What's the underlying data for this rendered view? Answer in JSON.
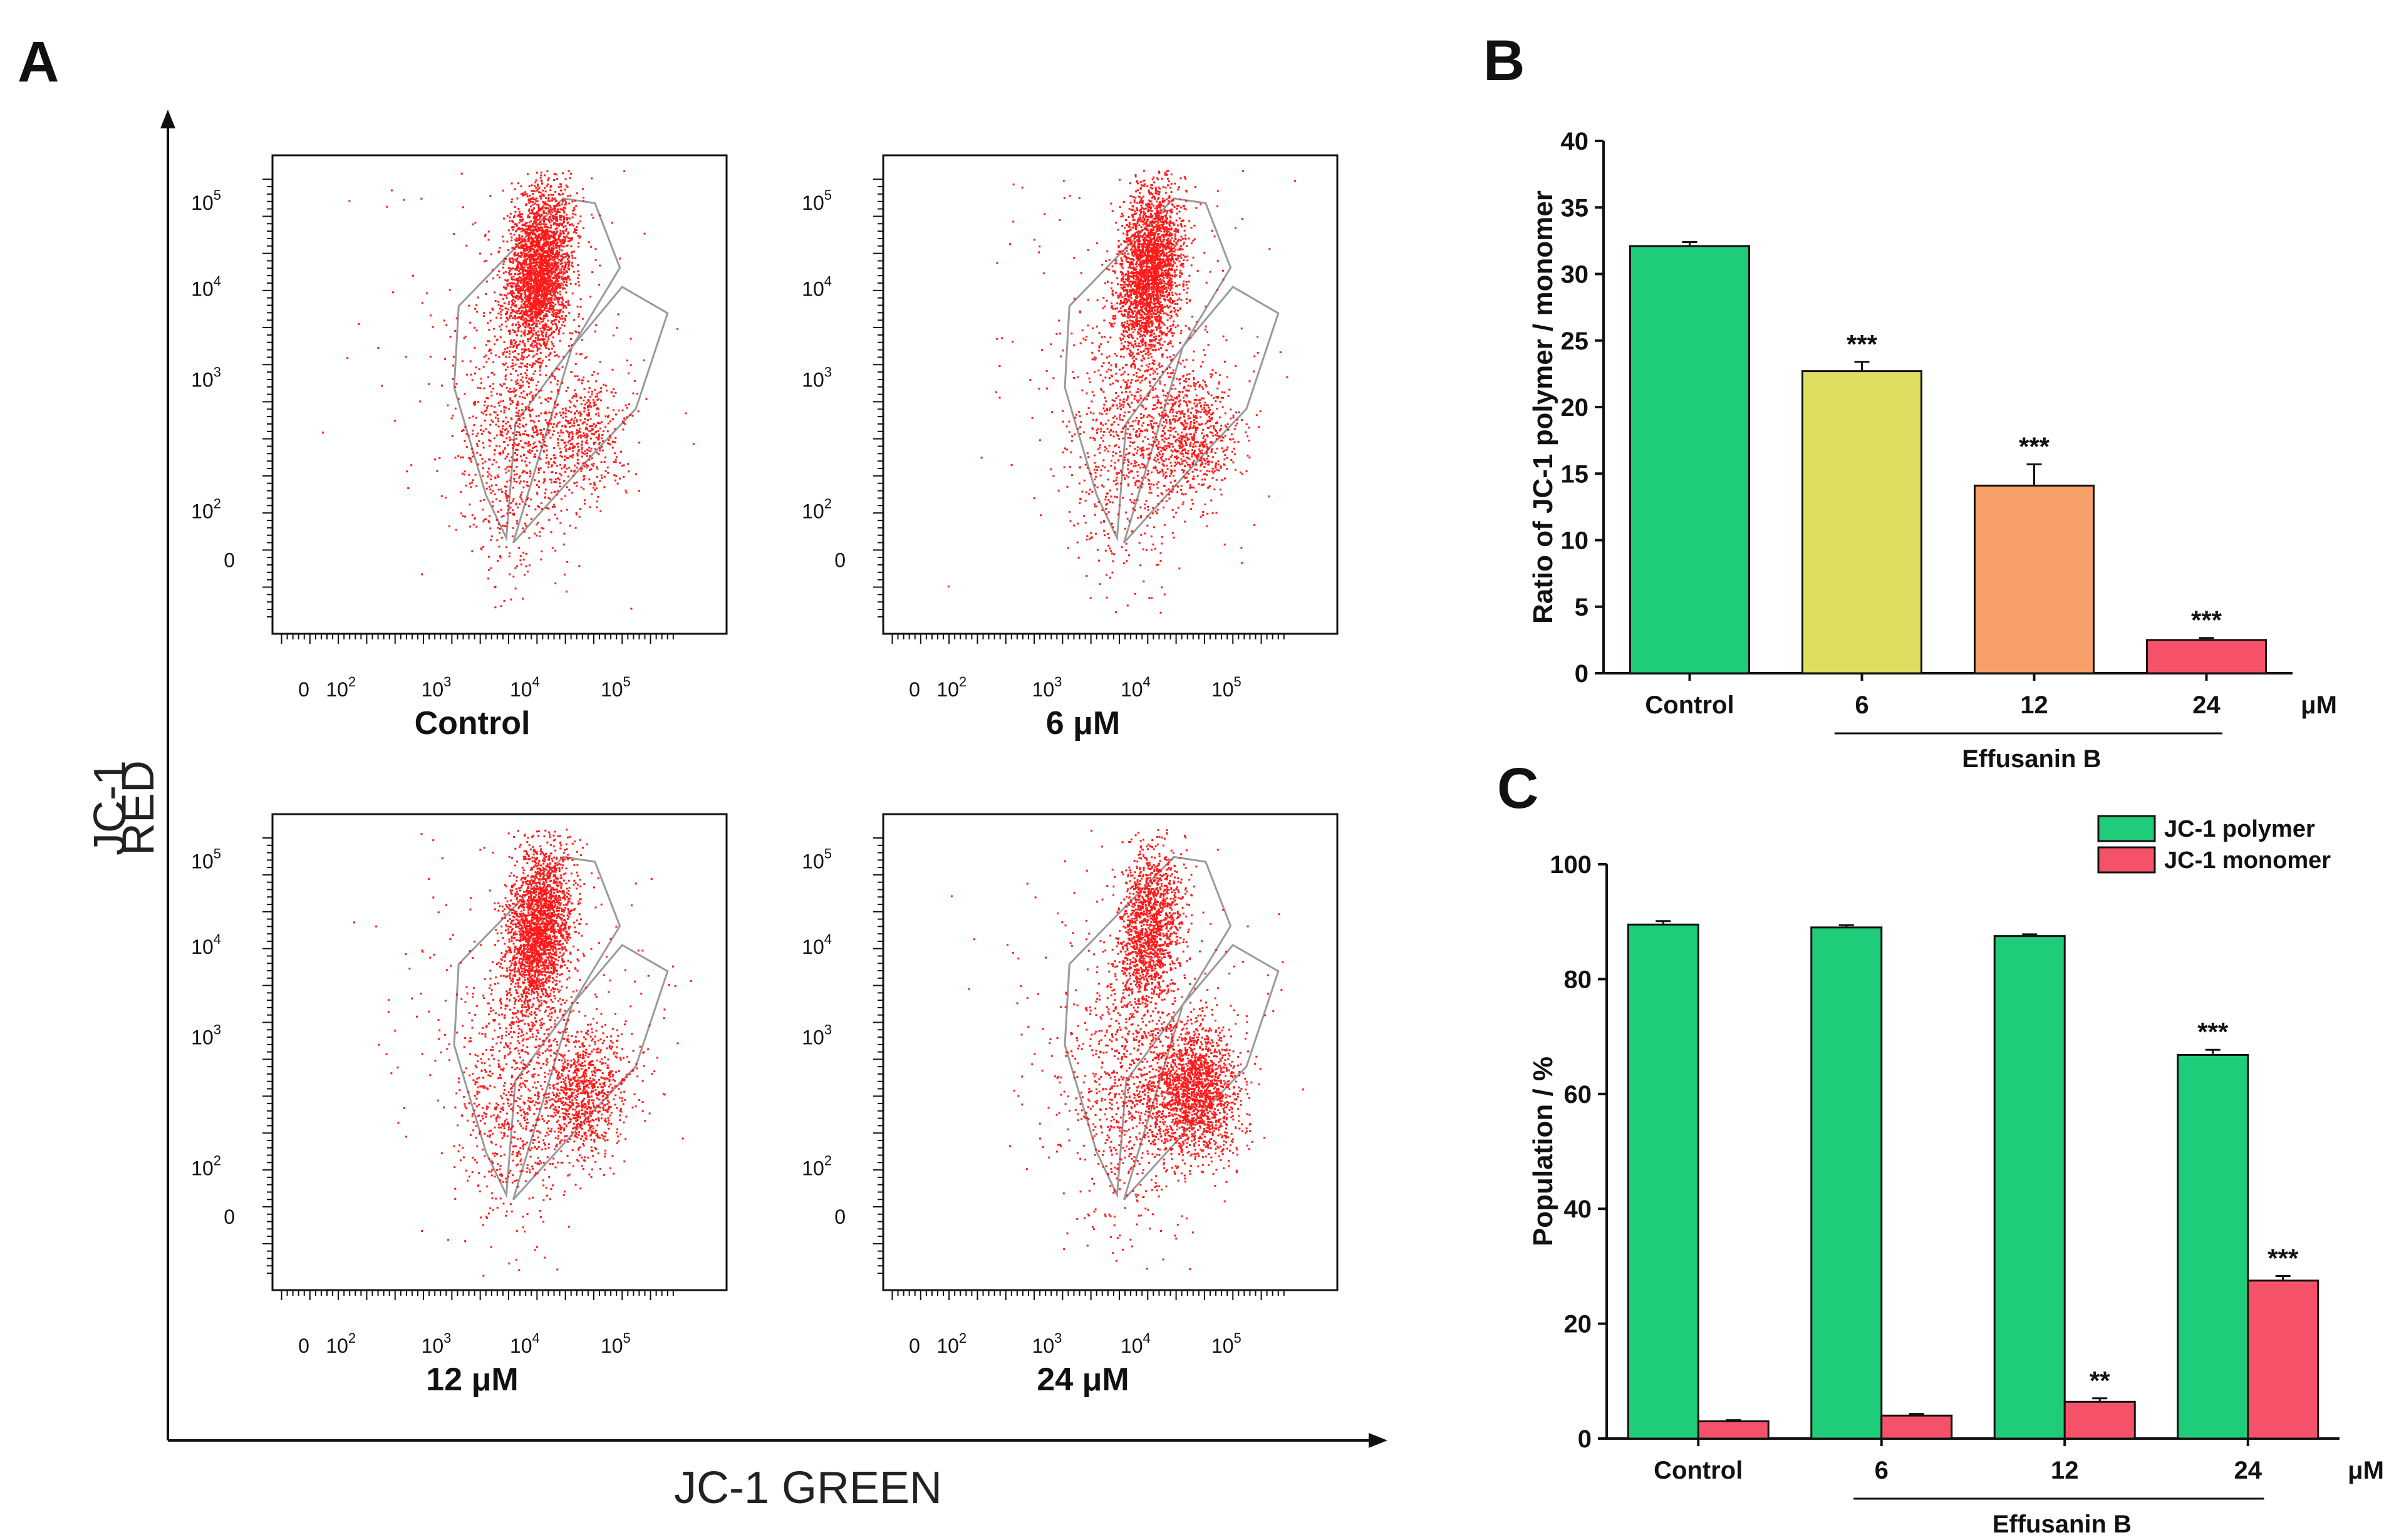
{
  "panel_labels": {
    "a": "A",
    "b": "B",
    "c": "C"
  },
  "colors": {
    "polymer": "#1fcc7a",
    "monomer": "#f5526a",
    "bar_6": "#dede60",
    "bar_12": "#f7a06a",
    "bar_24": "#f5526a",
    "dots": "#ff1a1a",
    "gate": "#9a9a9a"
  },
  "flow": {
    "y_title_line1": "JC-1",
    "y_title_line2": "RED",
    "x_title": "JC-1 GREEN",
    "tick_zero": "0",
    "tick_base": "10",
    "exponents": [
      "2",
      "3",
      "4",
      "5"
    ],
    "conditions": [
      "Control",
      "6 μM",
      "12 μM",
      "24 μM"
    ]
  },
  "chart_data": [
    {
      "type": "bar",
      "title": "",
      "xlabel": "",
      "ylabel": "Ratio of JC-1 polymer / monomer",
      "ylim": [
        0,
        40
      ],
      "yticks": [
        "0",
        "5",
        "10",
        "15",
        "20",
        "25",
        "30",
        "35",
        "40"
      ],
      "categories": [
        "Control",
        "6",
        "12",
        "24"
      ],
      "values": [
        32.1,
        22.7,
        14.1,
        2.5
      ],
      "errors": [
        0.3,
        0.7,
        1.6,
        0.15
      ],
      "significance": [
        "",
        "***",
        "***",
        "***"
      ],
      "unit": "μM",
      "group_label": "Effusanin B"
    },
    {
      "type": "bar",
      "title": "",
      "xlabel": "",
      "ylabel": "Population / %",
      "ylim": [
        0,
        100
      ],
      "yticks": [
        "0",
        "20",
        "40",
        "60",
        "80",
        "100"
      ],
      "categories": [
        "Control",
        "6",
        "12",
        "24"
      ],
      "series": [
        {
          "name": "JC-1 polymer",
          "values": [
            89.5,
            89.0,
            87.5,
            66.8
          ],
          "errors": [
            0.6,
            0.4,
            0.3,
            0.9
          ],
          "significance": [
            "",
            "",
            "",
            "***"
          ]
        },
        {
          "name": "JC-1 monomer",
          "values": [
            3.0,
            4.0,
            6.4,
            27.5
          ],
          "errors": [
            0.2,
            0.3,
            0.6,
            0.8
          ],
          "significance": [
            "",
            "",
            "**",
            "***"
          ]
        }
      ],
      "legend": "top-right",
      "unit": "μM",
      "group_label": "Effusanin B"
    }
  ]
}
